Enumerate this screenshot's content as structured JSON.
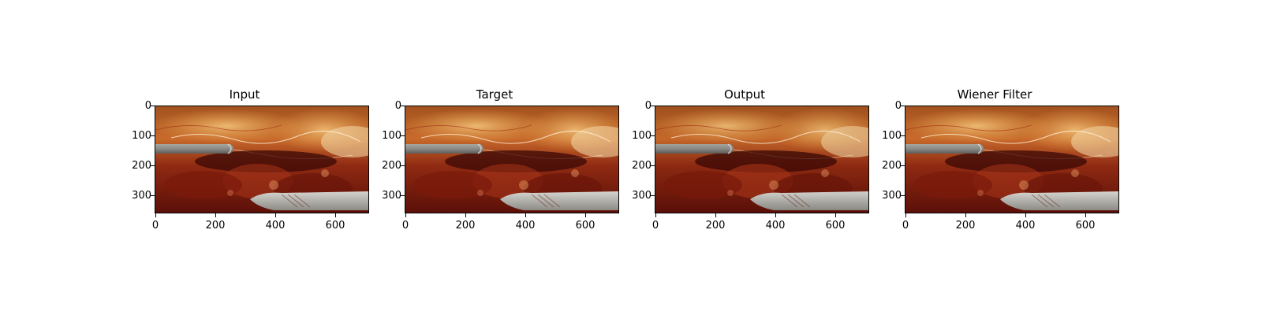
{
  "panels": [
    {
      "title": "Input",
      "variant": "input"
    },
    {
      "title": "Target",
      "variant": "target"
    },
    {
      "title": "Output",
      "variant": "output"
    },
    {
      "title": "Wiener Filter",
      "variant": "wiener"
    }
  ],
  "axes": {
    "yticks": [
      "0",
      "100",
      "200",
      "300"
    ],
    "xticks": [
      "0",
      "200",
      "400",
      "600"
    ]
  },
  "colors": {
    "tissue_dark": "#5a0f08",
    "tissue_mid": "#8f2a12",
    "tissue_light": "#c86a2b",
    "fat": "#e3a24a",
    "instrument": "#8c8a86"
  }
}
